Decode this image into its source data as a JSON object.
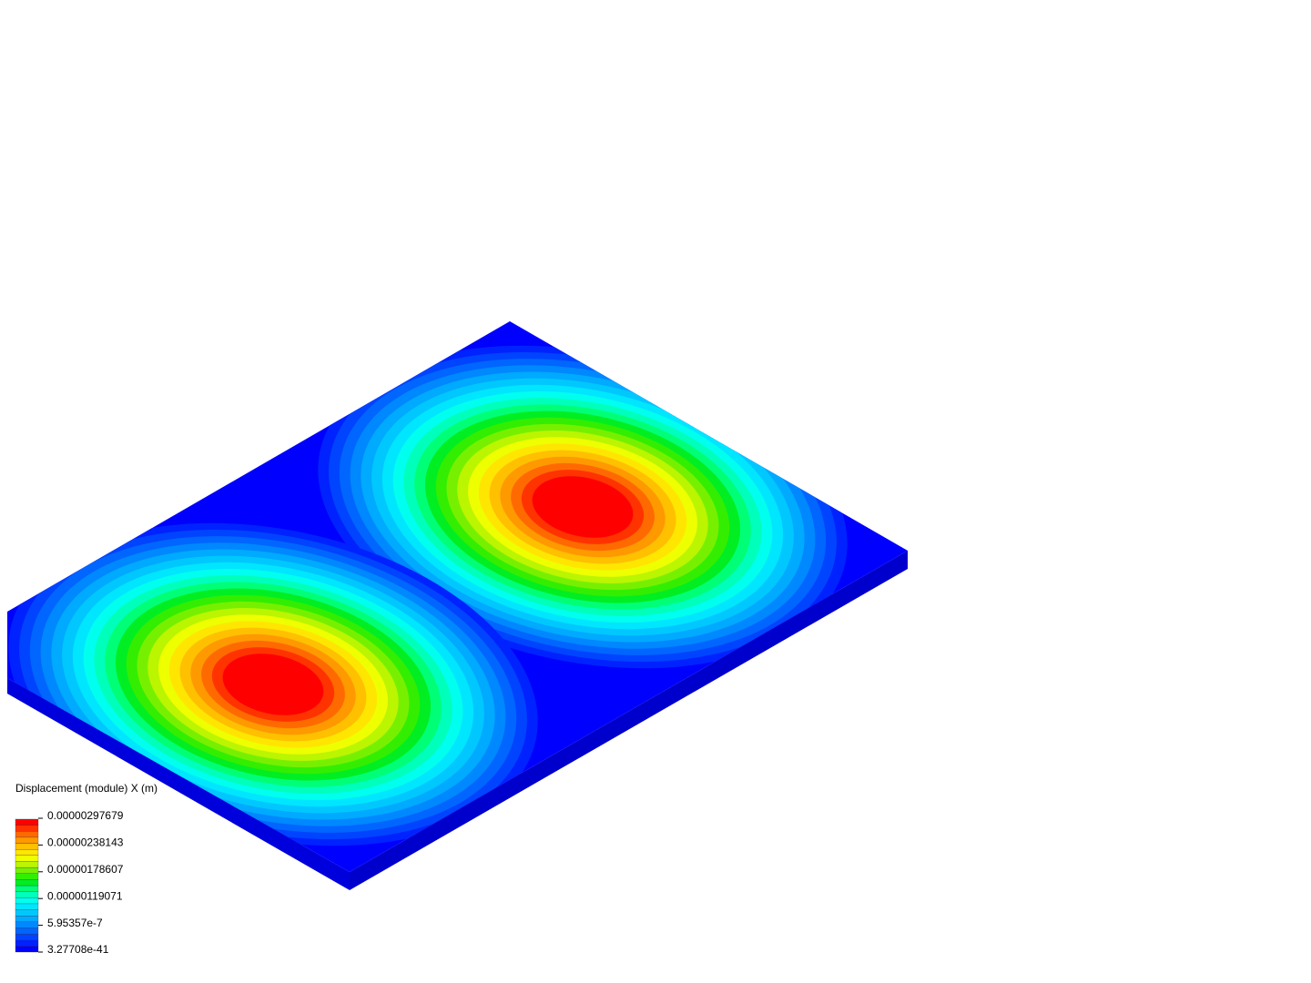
{
  "legend": {
    "title": "Displacement (module) X (m)",
    "ticks": [
      "0.00000297679",
      "0.00000238143",
      "0.00000178607",
      "0.00000119071",
      "5.95357e-7",
      "3.27708e-41"
    ]
  }
}
